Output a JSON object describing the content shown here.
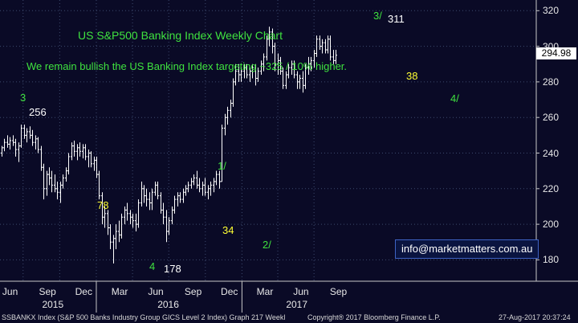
{
  "chart_data": {
    "type": "bar",
    "subtype": "ohlc",
    "title": "US S&P500 Banking Index Weekly Chart",
    "subtitle": "We remain bullish the US Banking Index targeting ~325 / 10% higher.",
    "ylim": [
      168,
      326
    ],
    "yticks": [
      180,
      200,
      220,
      240,
      260,
      280,
      300,
      320
    ],
    "x_tick_labels": [
      "Jun",
      "Sep",
      "Dec",
      "Mar",
      "Jun",
      "Sep",
      "Dec",
      "Mar",
      "Jun",
      "Sep"
    ],
    "year_labels": [
      "2015",
      "2016",
      "2017"
    ],
    "last_price": "294.98",
    "grid": true,
    "colors": {
      "background": "#0a0a26",
      "bars": "#ffffff",
      "grid": "#3d4a6e",
      "annotation_green": "#3fe23f",
      "annotation_yellow": "#ffff33"
    },
    "x_start": "2015-05-08",
    "weeks": [
      {
        "date": "2015-05-08",
        "open": 240,
        "high": 244,
        "low": 238,
        "close": 243
      },
      {
        "date": "2015-05-15",
        "open": 243,
        "high": 248,
        "low": 241,
        "close": 246
      },
      {
        "date": "2015-05-22",
        "open": 246,
        "high": 250,
        "low": 243,
        "close": 245
      },
      {
        "date": "2015-05-29",
        "open": 245,
        "high": 249,
        "low": 242,
        "close": 247
      },
      {
        "date": "2015-06-05",
        "open": 247,
        "high": 250,
        "low": 244,
        "close": 246
      },
      {
        "date": "2015-06-12",
        "open": 246,
        "high": 248,
        "low": 238,
        "close": 242
      },
      {
        "date": "2015-06-19",
        "open": 242,
        "high": 246,
        "low": 235,
        "close": 244
      },
      {
        "date": "2015-06-26",
        "open": 244,
        "high": 256,
        "low": 243,
        "close": 254
      },
      {
        "date": "2015-07-03",
        "open": 254,
        "high": 256,
        "low": 248,
        "close": 250
      },
      {
        "date": "2015-07-10",
        "open": 250,
        "high": 254,
        "low": 246,
        "close": 252
      },
      {
        "date": "2015-07-17",
        "open": 252,
        "high": 255,
        "low": 248,
        "close": 250
      },
      {
        "date": "2015-07-24",
        "open": 250,
        "high": 253,
        "low": 244,
        "close": 246
      },
      {
        "date": "2015-07-31",
        "open": 246,
        "high": 250,
        "low": 242,
        "close": 248
      },
      {
        "date": "2015-08-07",
        "open": 248,
        "high": 249,
        "low": 240,
        "close": 242
      },
      {
        "date": "2015-08-14",
        "open": 242,
        "high": 244,
        "low": 230,
        "close": 232
      },
      {
        "date": "2015-08-21",
        "open": 232,
        "high": 234,
        "low": 214,
        "close": 220
      },
      {
        "date": "2015-08-28",
        "open": 220,
        "high": 230,
        "low": 216,
        "close": 228
      },
      {
        "date": "2015-09-04",
        "open": 228,
        "high": 232,
        "low": 222,
        "close": 226
      },
      {
        "date": "2015-09-11",
        "open": 226,
        "high": 230,
        "low": 218,
        "close": 222
      },
      {
        "date": "2015-09-18",
        "open": 222,
        "high": 228,
        "low": 218,
        "close": 220
      },
      {
        "date": "2015-09-25",
        "open": 220,
        "high": 224,
        "low": 214,
        "close": 218
      },
      {
        "date": "2015-10-02",
        "open": 218,
        "high": 224,
        "low": 212,
        "close": 222
      },
      {
        "date": "2015-10-09",
        "open": 222,
        "high": 228,
        "low": 220,
        "close": 226
      },
      {
        "date": "2015-10-16",
        "open": 226,
        "high": 232,
        "low": 224,
        "close": 230
      },
      {
        "date": "2015-10-23",
        "open": 230,
        "high": 240,
        "low": 228,
        "close": 238
      },
      {
        "date": "2015-10-30",
        "open": 238,
        "high": 246,
        "low": 236,
        "close": 244
      },
      {
        "date": "2015-11-06",
        "open": 244,
        "high": 247,
        "low": 238,
        "close": 241
      },
      {
        "date": "2015-11-13",
        "open": 241,
        "high": 245,
        "low": 236,
        "close": 243
      },
      {
        "date": "2015-11-20",
        "open": 243,
        "high": 246,
        "low": 238,
        "close": 241
      },
      {
        "date": "2015-11-27",
        "open": 241,
        "high": 245,
        "low": 237,
        "close": 243
      },
      {
        "date": "2015-12-04",
        "open": 243,
        "high": 245,
        "low": 236,
        "close": 238
      },
      {
        "date": "2015-12-11",
        "open": 238,
        "high": 242,
        "low": 232,
        "close": 240
      },
      {
        "date": "2015-12-18",
        "open": 240,
        "high": 241,
        "low": 232,
        "close": 234
      },
      {
        "date": "2015-12-25",
        "open": 234,
        "high": 238,
        "low": 230,
        "close": 236
      },
      {
        "date": "2016-01-01",
        "open": 236,
        "high": 238,
        "low": 226,
        "close": 228
      },
      {
        "date": "2016-01-08",
        "open": 228,
        "high": 230,
        "low": 214,
        "close": 216
      },
      {
        "date": "2016-01-15",
        "open": 216,
        "high": 218,
        "low": 200,
        "close": 204
      },
      {
        "date": "2016-01-22",
        "open": 204,
        "high": 210,
        "low": 198,
        "close": 206
      },
      {
        "date": "2016-01-29",
        "open": 206,
        "high": 208,
        "low": 194,
        "close": 198
      },
      {
        "date": "2016-02-05",
        "open": 198,
        "high": 200,
        "low": 186,
        "close": 190
      },
      {
        "date": "2016-02-12",
        "open": 190,
        "high": 194,
        "low": 178,
        "close": 192
      },
      {
        "date": "2016-02-19",
        "open": 192,
        "high": 200,
        "low": 186,
        "close": 196
      },
      {
        "date": "2016-02-26",
        "open": 196,
        "high": 202,
        "low": 190,
        "close": 194
      },
      {
        "date": "2016-03-04",
        "open": 194,
        "high": 206,
        "low": 192,
        "close": 204
      },
      {
        "date": "2016-03-11",
        "open": 204,
        "high": 210,
        "low": 200,
        "close": 208
      },
      {
        "date": "2016-03-18",
        "open": 208,
        "high": 212,
        "low": 202,
        "close": 206
      },
      {
        "date": "2016-03-25",
        "open": 206,
        "high": 208,
        "low": 200,
        "close": 204
      },
      {
        "date": "2016-04-01",
        "open": 204,
        "high": 206,
        "low": 198,
        "close": 202
      },
      {
        "date": "2016-04-08",
        "open": 202,
        "high": 206,
        "low": 196,
        "close": 200
      },
      {
        "date": "2016-04-15",
        "open": 200,
        "high": 214,
        "low": 198,
        "close": 212
      },
      {
        "date": "2016-04-22",
        "open": 212,
        "high": 224,
        "low": 210,
        "close": 220
      },
      {
        "date": "2016-04-29",
        "open": 220,
        "high": 222,
        "low": 212,
        "close": 216
      },
      {
        "date": "2016-05-06",
        "open": 216,
        "high": 220,
        "low": 210,
        "close": 214
      },
      {
        "date": "2016-05-13",
        "open": 214,
        "high": 218,
        "low": 208,
        "close": 212
      },
      {
        "date": "2016-05-20",
        "open": 212,
        "high": 220,
        "low": 208,
        "close": 218
      },
      {
        "date": "2016-05-27",
        "open": 218,
        "high": 224,
        "low": 216,
        "close": 222
      },
      {
        "date": "2016-06-03",
        "open": 222,
        "high": 224,
        "low": 214,
        "close": 216
      },
      {
        "date": "2016-06-10",
        "open": 216,
        "high": 218,
        "low": 206,
        "close": 208
      },
      {
        "date": "2016-06-17",
        "open": 208,
        "high": 212,
        "low": 200,
        "close": 204
      },
      {
        "date": "2016-06-24",
        "open": 204,
        "high": 208,
        "low": 190,
        "close": 196
      },
      {
        "date": "2016-07-01",
        "open": 196,
        "high": 204,
        "low": 194,
        "close": 202
      },
      {
        "date": "2016-07-08",
        "open": 202,
        "high": 210,
        "low": 200,
        "close": 208
      },
      {
        "date": "2016-07-15",
        "open": 208,
        "high": 216,
        "low": 206,
        "close": 214
      },
      {
        "date": "2016-07-22",
        "open": 214,
        "high": 218,
        "low": 210,
        "close": 216
      },
      {
        "date": "2016-07-29",
        "open": 216,
        "high": 218,
        "low": 212,
        "close": 214
      },
      {
        "date": "2016-08-05",
        "open": 214,
        "high": 220,
        "low": 212,
        "close": 218
      },
      {
        "date": "2016-08-12",
        "open": 218,
        "high": 222,
        "low": 216,
        "close": 220
      },
      {
        "date": "2016-08-19",
        "open": 220,
        "high": 224,
        "low": 218,
        "close": 222
      },
      {
        "date": "2016-08-26",
        "open": 222,
        "high": 226,
        "low": 220,
        "close": 224
      },
      {
        "date": "2016-09-02",
        "open": 224,
        "high": 228,
        "low": 222,
        "close": 226
      },
      {
        "date": "2016-09-09",
        "open": 226,
        "high": 230,
        "low": 220,
        "close": 222
      },
      {
        "date": "2016-09-16",
        "open": 222,
        "high": 226,
        "low": 218,
        "close": 220
      },
      {
        "date": "2016-09-23",
        "open": 220,
        "high": 224,
        "low": 216,
        "close": 222
      },
      {
        "date": "2016-09-30",
        "open": 222,
        "high": 226,
        "low": 216,
        "close": 218
      },
      {
        "date": "2016-10-07",
        "open": 218,
        "high": 222,
        "low": 214,
        "close": 220
      },
      {
        "date": "2016-10-14",
        "open": 220,
        "high": 224,
        "low": 216,
        "close": 222
      },
      {
        "date": "2016-10-21",
        "open": 222,
        "high": 226,
        "low": 218,
        "close": 224
      },
      {
        "date": "2016-10-28",
        "open": 224,
        "high": 230,
        "low": 222,
        "close": 228
      },
      {
        "date": "2016-11-04",
        "open": 228,
        "high": 230,
        "low": 220,
        "close": 224
      },
      {
        "date": "2016-11-11",
        "open": 224,
        "high": 256,
        "low": 224,
        "close": 254
      },
      {
        "date": "2016-11-18",
        "open": 254,
        "high": 262,
        "low": 250,
        "close": 260
      },
      {
        "date": "2016-11-25",
        "open": 260,
        "high": 266,
        "low": 256,
        "close": 264
      },
      {
        "date": "2016-12-02",
        "open": 264,
        "high": 270,
        "low": 260,
        "close": 268
      },
      {
        "date": "2016-12-09",
        "open": 268,
        "high": 282,
        "low": 266,
        "close": 280
      },
      {
        "date": "2016-12-16",
        "open": 280,
        "high": 290,
        "low": 278,
        "close": 286
      },
      {
        "date": "2016-12-23",
        "open": 286,
        "high": 290,
        "low": 280,
        "close": 284
      },
      {
        "date": "2016-12-30",
        "open": 284,
        "high": 288,
        "low": 280,
        "close": 286
      },
      {
        "date": "2017-01-06",
        "open": 286,
        "high": 290,
        "low": 282,
        "close": 288
      },
      {
        "date": "2017-01-13",
        "open": 288,
        "high": 290,
        "low": 282,
        "close": 284
      },
      {
        "date": "2017-01-20",
        "open": 284,
        "high": 288,
        "low": 280,
        "close": 286
      },
      {
        "date": "2017-01-27",
        "open": 286,
        "high": 290,
        "low": 282,
        "close": 288
      },
      {
        "date": "2017-02-03",
        "open": 288,
        "high": 290,
        "low": 278,
        "close": 282
      },
      {
        "date": "2017-02-10",
        "open": 282,
        "high": 288,
        "low": 280,
        "close": 286
      },
      {
        "date": "2017-02-17",
        "open": 286,
        "high": 292,
        "low": 284,
        "close": 290
      },
      {
        "date": "2017-02-24",
        "open": 290,
        "high": 296,
        "low": 286,
        "close": 294
      },
      {
        "date": "2017-03-03",
        "open": 294,
        "high": 306,
        "low": 292,
        "close": 304
      },
      {
        "date": "2017-03-10",
        "open": 304,
        "high": 311,
        "low": 300,
        "close": 308
      },
      {
        "date": "2017-03-17",
        "open": 308,
        "high": 310,
        "low": 296,
        "close": 300
      },
      {
        "date": "2017-03-24",
        "open": 300,
        "high": 302,
        "low": 286,
        "close": 290
      },
      {
        "date": "2017-03-31",
        "open": 290,
        "high": 296,
        "low": 284,
        "close": 292
      },
      {
        "date": "2017-04-07",
        "open": 292,
        "high": 294,
        "low": 284,
        "close": 286
      },
      {
        "date": "2017-04-14",
        "open": 286,
        "high": 288,
        "low": 276,
        "close": 278
      },
      {
        "date": "2017-04-21",
        "open": 278,
        "high": 286,
        "low": 276,
        "close": 284
      },
      {
        "date": "2017-04-28",
        "open": 284,
        "high": 290,
        "low": 282,
        "close": 288
      },
      {
        "date": "2017-05-05",
        "open": 288,
        "high": 292,
        "low": 284,
        "close": 290
      },
      {
        "date": "2017-05-12",
        "open": 290,
        "high": 292,
        "low": 282,
        "close": 284
      },
      {
        "date": "2017-05-19",
        "open": 284,
        "high": 286,
        "low": 276,
        "close": 280
      },
      {
        "date": "2017-05-26",
        "open": 280,
        "high": 284,
        "low": 276,
        "close": 282
      },
      {
        "date": "2017-06-02",
        "open": 282,
        "high": 286,
        "low": 274,
        "close": 278
      },
      {
        "date": "2017-06-09",
        "open": 278,
        "high": 290,
        "low": 276,
        "close": 288
      },
      {
        "date": "2017-06-16",
        "open": 288,
        "high": 294,
        "low": 284,
        "close": 290
      },
      {
        "date": "2017-06-23",
        "open": 290,
        "high": 294,
        "low": 286,
        "close": 292
      },
      {
        "date": "2017-06-30",
        "open": 292,
        "high": 298,
        "low": 288,
        "close": 296
      },
      {
        "date": "2017-07-07",
        "open": 296,
        "high": 306,
        "low": 294,
        "close": 304
      },
      {
        "date": "2017-07-14",
        "open": 304,
        "high": 306,
        "low": 298,
        "close": 300
      },
      {
        "date": "2017-07-21",
        "open": 300,
        "high": 304,
        "low": 296,
        "close": 302
      },
      {
        "date": "2017-07-28",
        "open": 302,
        "high": 304,
        "low": 296,
        "close": 298
      },
      {
        "date": "2017-08-04",
        "open": 298,
        "high": 306,
        "low": 296,
        "close": 304
      },
      {
        "date": "2017-08-11",
        "open": 304,
        "high": 306,
        "low": 292,
        "close": 294
      },
      {
        "date": "2017-08-18",
        "open": 294,
        "high": 298,
        "low": 290,
        "close": 292
      },
      {
        "date": "2017-08-25",
        "open": 292,
        "high": 298,
        "low": 290,
        "close": 294.98
      }
    ],
    "annotations": [
      {
        "text": "3",
        "color": "green"
      },
      {
        "text": "256",
        "color": "white"
      },
      {
        "text": "78",
        "color": "yellow"
      },
      {
        "text": "4",
        "color": "green"
      },
      {
        "text": "178",
        "color": "white"
      },
      {
        "text": "1/",
        "color": "green"
      },
      {
        "text": "34",
        "color": "yellow"
      },
      {
        "text": "2/",
        "color": "green"
      },
      {
        "text": "3/",
        "color": "green"
      },
      {
        "text": "311",
        "color": "white"
      },
      {
        "text": "38",
        "color": "yellow"
      },
      {
        "text": "4/",
        "color": "green"
      }
    ]
  },
  "info_box": "info@marketmatters.com.au",
  "footer": {
    "left": "SSBANKX Index (S&P 500 Banks Industry Group GICS Level 2 Index) Graph 217  Weekl",
    "center": "Copyright® 2017 Bloomberg Finance L.P.",
    "right": "27-Aug-2017 20:37:24"
  }
}
